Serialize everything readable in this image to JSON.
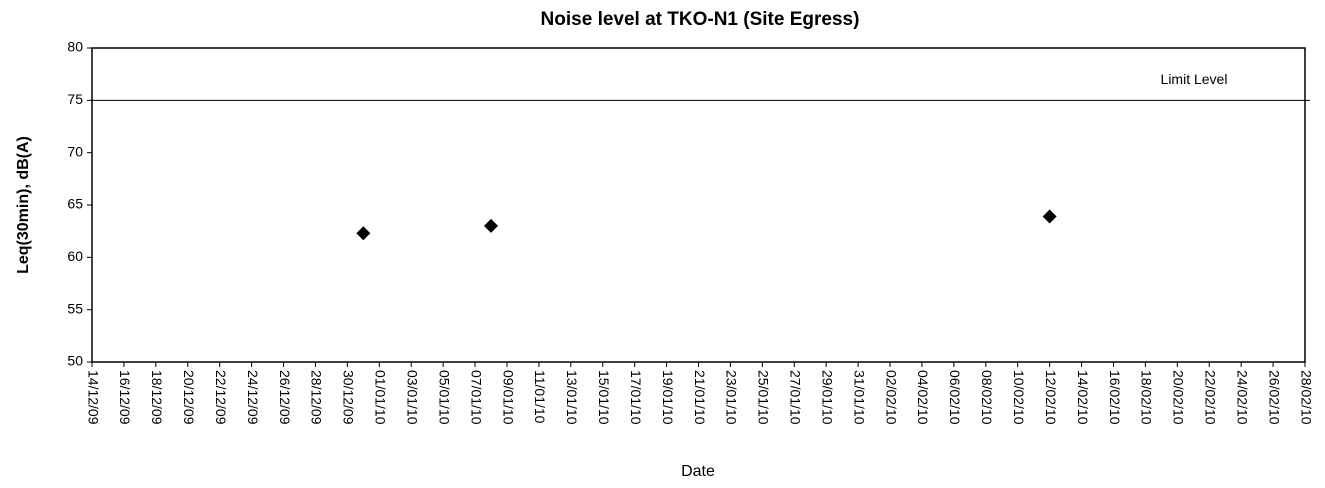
{
  "chart_data": {
    "type": "scatter",
    "title": "Noise level at TKO-N1 (Site Egress)",
    "x_label": "Date",
    "y_label": "Leq(30min), dB(A)",
    "series": [
      {
        "name": "Leq(30min)",
        "color": "#000000",
        "x": [
          "2009-12-31",
          "2010-01-08",
          "2010-02-12"
        ],
        "values": [
          62.3,
          63.0,
          63.9
        ]
      }
    ],
    "limit": {
      "value": 75,
      "label": "Limit Level"
    },
    "xlim": [
      "2009-12-14",
      "2010-02-28"
    ],
    "xticks": [
      {
        "value": "2009-12-14",
        "label": "14/12/09"
      },
      {
        "value": "2009-12-16",
        "label": "16/12/09"
      },
      {
        "value": "2009-12-18",
        "label": "18/12/09"
      },
      {
        "value": "2009-12-20",
        "label": "20/12/09"
      },
      {
        "value": "2009-12-22",
        "label": "22/12/09"
      },
      {
        "value": "2009-12-24",
        "label": "24/12/09"
      },
      {
        "value": "2009-12-26",
        "label": "26/12/09"
      },
      {
        "value": "2009-12-28",
        "label": "28/12/09"
      },
      {
        "value": "2009-12-30",
        "label": "30/12/09"
      },
      {
        "value": "2010-01-01",
        "label": "01/01/10"
      },
      {
        "value": "2010-01-03",
        "label": "03/01/10"
      },
      {
        "value": "2010-01-05",
        "label": "05/01/10"
      },
      {
        "value": "2010-01-07",
        "label": "07/01/10"
      },
      {
        "value": "2010-01-09",
        "label": "09/01/10"
      },
      {
        "value": "2010-01-11",
        "label": "11/01/10"
      },
      {
        "value": "2010-01-13",
        "label": "13/01/10"
      },
      {
        "value": "2010-01-15",
        "label": "15/01/10"
      },
      {
        "value": "2010-01-17",
        "label": "17/01/10"
      },
      {
        "value": "2010-01-19",
        "label": "19/01/10"
      },
      {
        "value": "2010-01-21",
        "label": "21/01/10"
      },
      {
        "value": "2010-01-23",
        "label": "23/01/10"
      },
      {
        "value": "2010-01-25",
        "label": "25/01/10"
      },
      {
        "value": "2010-01-27",
        "label": "27/01/10"
      },
      {
        "value": "2010-01-29",
        "label": "29/01/10"
      },
      {
        "value": "2010-01-31",
        "label": "31/01/10"
      },
      {
        "value": "2010-02-02",
        "label": "02/02/10"
      },
      {
        "value": "2010-02-04",
        "label": "04/02/10"
      },
      {
        "value": "2010-02-06",
        "label": "06/02/10"
      },
      {
        "value": "2010-02-08",
        "label": "08/02/10"
      },
      {
        "value": "2010-02-10",
        "label": "10/02/10"
      },
      {
        "value": "2010-02-12",
        "label": "12/02/10"
      },
      {
        "value": "2010-02-14",
        "label": "14/02/10"
      },
      {
        "value": "2010-02-16",
        "label": "16/02/10"
      },
      {
        "value": "2010-02-18",
        "label": "18/02/10"
      },
      {
        "value": "2010-02-20",
        "label": "20/02/10"
      },
      {
        "value": "2010-02-22",
        "label": "22/02/10"
      },
      {
        "value": "2010-02-24",
        "label": "24/02/10"
      },
      {
        "value": "2010-02-26",
        "label": "26/02/10"
      },
      {
        "value": "2010-02-28",
        "label": "28/02/10"
      }
    ],
    "ylim": [
      50,
      80
    ],
    "yticks": [
      50,
      55,
      60,
      65,
      70,
      75,
      80
    ],
    "grid": false
  }
}
